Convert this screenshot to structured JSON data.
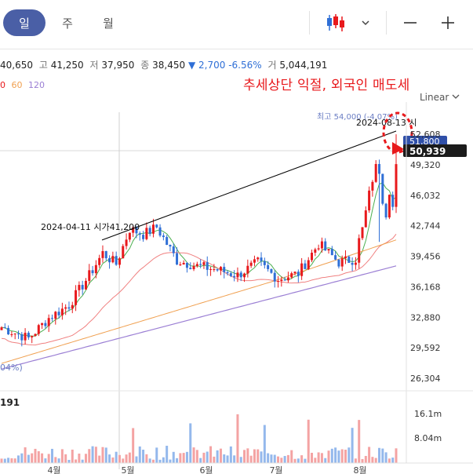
{
  "toolbar": {
    "periods": [
      {
        "label": "일",
        "active": true
      },
      {
        "label": "주",
        "active": false
      },
      {
        "label": "월",
        "active": false
      }
    ],
    "chart_type_icon": "candlestick-icon",
    "dropdown_icon": "chevron-down-icon",
    "zoom_out_icon": "minus-icon",
    "zoom_in_icon": "plus-icon"
  },
  "ohlc": {
    "open_value": "40,650",
    "high_label": "고",
    "high_value": "41,250",
    "low_label": "저",
    "low_value": "37,950",
    "close_label": "종",
    "close_value": "38,450",
    "change_arrow": "▼",
    "change_value": "2,700",
    "change_pct": "-6.56%",
    "volume_label": "거",
    "volume_value": "5,044,191"
  },
  "ma_legend": [
    {
      "label": "0",
      "color": "#e8191c"
    },
    {
      "label": "60",
      "color": "#f0a050"
    },
    {
      "label": "120",
      "color": "#9b7fd4"
    }
  ],
  "annotation": "추세상단 익절, 외국인 매도세",
  "scale_type": "Linear",
  "scale_dropdown_icon": "chevron-down-icon",
  "volume_title": "191",
  "colors": {
    "up": "#e8191c",
    "down": "#2f6fd6",
    "ma_short": "#f08080",
    "ma_green": "#4caf50",
    "ma60": "#f0a050",
    "ma120": "#9b7fd4",
    "annotation_red": "#e8191c",
    "active_tab": "#4a5fa6"
  },
  "chart_data": {
    "type": "candlestick",
    "y_ticks": [
      "52,608",
      "49,320",
      "46,032",
      "42,744",
      "39,456",
      "36,168",
      "32,880",
      "29,592",
      "26,304"
    ],
    "x_ticks": [
      "4월",
      "5월",
      "6월",
      "7월",
      "8월"
    ],
    "volume_ticks": [
      "16.1m",
      "8.04m"
    ],
    "current_price_tag": "50,939",
    "max_price_tag": "51,800",
    "high_marker": "최고 54,000 (-4.07%)",
    "left_pct_label": "04%)",
    "trendline": {
      "start": {
        "date": "2024-04-11",
        "price": 41200
      },
      "end": {
        "date": "2024-08-13",
        "price": 52608
      }
    },
    "trendline_labels": [
      "2024-04-11 시가41,200",
      "2024-08-13 시"
    ],
    "ylim": [
      26304,
      52608
    ]
  }
}
